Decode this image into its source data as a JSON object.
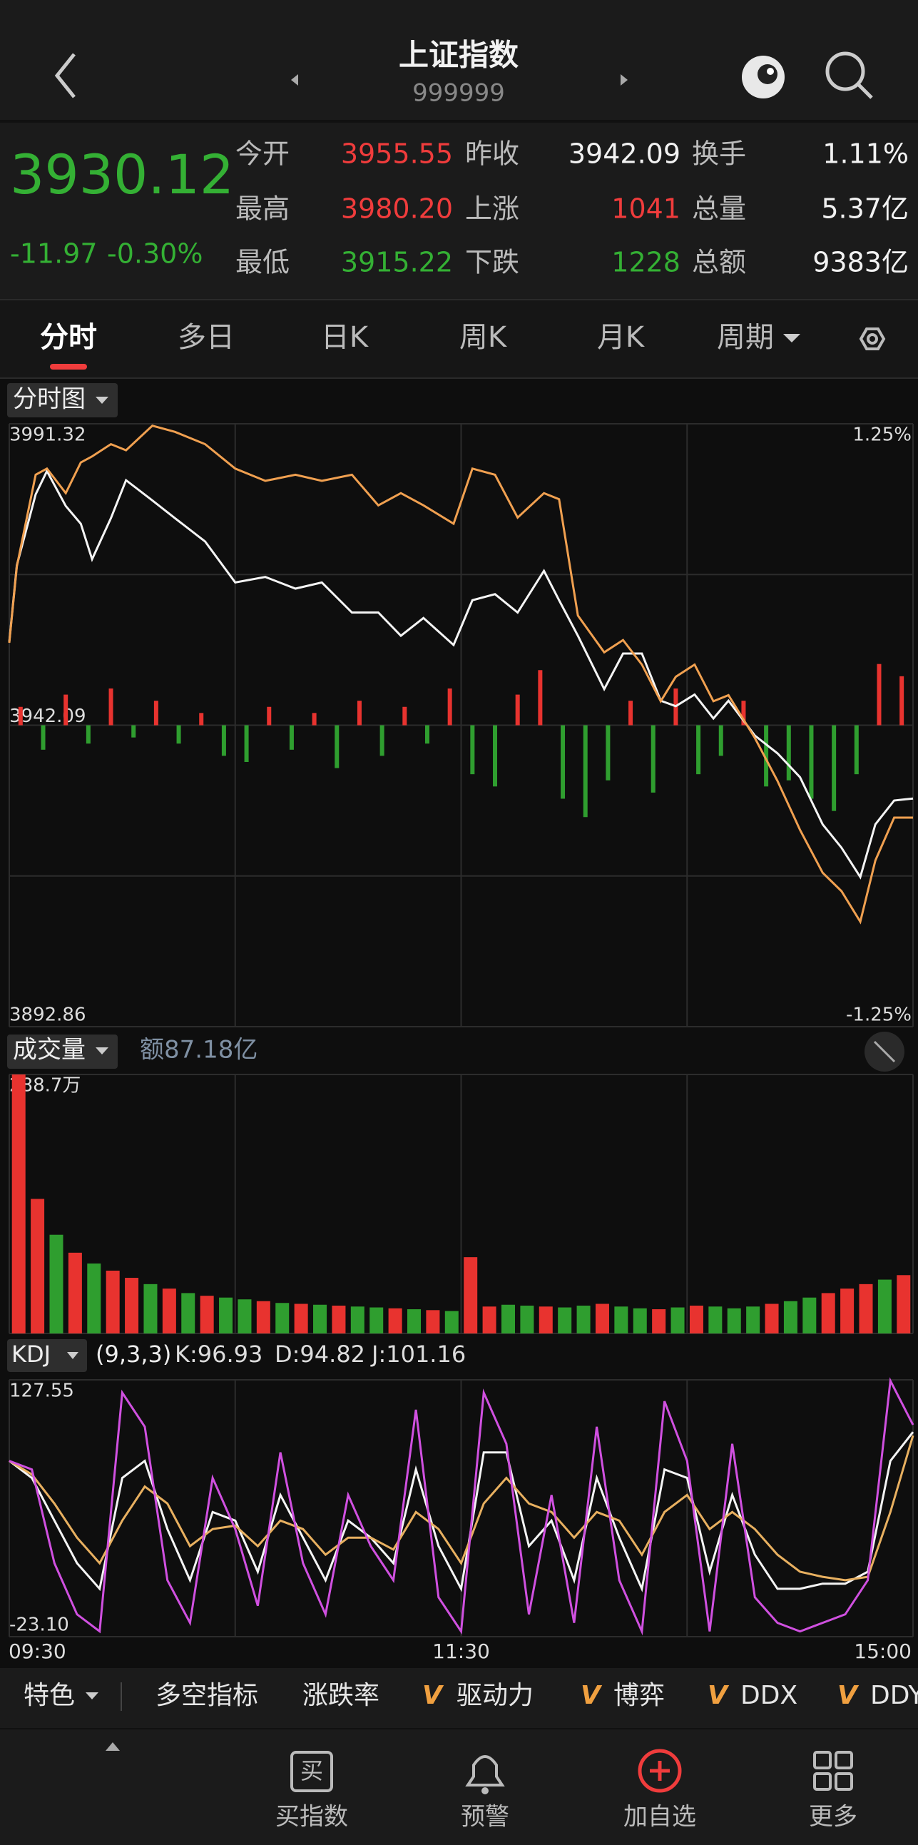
{
  "header": {
    "title": "上证指数",
    "code": "999999"
  },
  "quote": {
    "price": "3930.12",
    "change": "-11.97",
    "change_pct": "-0.30%",
    "rows": [
      [
        {
          "label": "今开",
          "value": "3955.55"
        },
        {
          "label": "昨收",
          "value": "3942.09"
        },
        {
          "label": "换手",
          "value": "1.11%"
        }
      ],
      [
        {
          "label": "最高",
          "value": "3980.20"
        },
        {
          "label": "上涨",
          "value": "1041"
        },
        {
          "label": "总量",
          "value": "5.37亿"
        }
      ],
      [
        {
          "label": "最低",
          "value": "3915.22"
        },
        {
          "label": "下跌",
          "value": "1228"
        },
        {
          "label": "总额",
          "value": "9383亿"
        }
      ]
    ]
  },
  "tabs": [
    "分时",
    "多日",
    "日K",
    "周K",
    "月K",
    "周期"
  ],
  "chart_data": [
    {
      "type": "line",
      "label": "分时图",
      "x": [
        0,
        2,
        7,
        10,
        15,
        19,
        22,
        27,
        31,
        38,
        44,
        52,
        60,
        68,
        76,
        83,
        91,
        98,
        104,
        110,
        118,
        123,
        129,
        135,
        142,
        146,
        151,
        158,
        163,
        168,
        173,
        177,
        182,
        187,
        191,
        198,
        204,
        210,
        216,
        221,
        226,
        230,
        235,
        240
      ],
      "xlim": [
        0,
        240
      ],
      "ylim": [
        3892.86,
        3991.32
      ],
      "yticks": [
        3892.86,
        3942.09,
        3991.32
      ],
      "y2lim": [
        -1.25,
        1.25
      ],
      "y2ticks": [
        {
          "value": -1.25,
          "label": "-1.25%"
        },
        {
          "value": 1.25,
          "label": "1.25%"
        }
      ],
      "series": [
        {
          "color": "#f4f4f4",
          "values": [
            3955.7,
            3968.2,
            3979.8,
            3983.6,
            3977.9,
            3975,
            3969.2,
            3975.9,
            3982.1,
            3978.8,
            3975.9,
            3972.1,
            3965.4,
            3966.3,
            3964.4,
            3965.4,
            3960.5,
            3960.5,
            3956.7,
            3959.6,
            3955.2,
            3962.5,
            3963.5,
            3960.5,
            3967.3,
            3962.5,
            3956.7,
            3948,
            3953.8,
            3953.8,
            3946.1,
            3945.2,
            3947.1,
            3943.2,
            3946.1,
            3940.4,
            3937.5,
            3933.6,
            3925.9,
            3922.1,
            3917.3,
            3925.9,
            3929.8,
            3930.12
          ]
        },
        {
          "color": "#f0a050",
          "values": [
            3955.55,
            3968,
            3983,
            3984,
            3980,
            3985,
            3986,
            3988,
            3987,
            3991,
            3990,
            3988,
            3984,
            3982,
            3983,
            3982,
            3983,
            3978,
            3980,
            3978,
            3975,
            3984,
            3983,
            3976,
            3980,
            3979,
            3960,
            3954,
            3956,
            3952,
            3946,
            3950,
            3952,
            3946,
            3947,
            3940,
            3933,
            3925,
            3918,
            3915,
            3910,
            3920,
            3927,
            3927
          ]
        }
      ],
      "bars": {
        "baseline": 3942.09,
        "up_color": "#e8332f",
        "down_color": "#2f9e2f",
        "x": [
          3,
          9,
          15,
          21,
          27,
          33,
          39,
          45,
          51,
          57,
          63,
          69,
          75,
          81,
          87,
          93,
          99,
          105,
          111,
          117,
          123,
          129,
          135,
          141,
          147,
          153,
          159,
          165,
          171,
          177,
          183,
          189,
          195,
          201,
          207,
          213,
          219,
          225,
          231,
          237
        ],
        "values": [
          3,
          -4,
          5,
          -3,
          6,
          -2,
          4,
          -3,
          2,
          -5,
          -6,
          3,
          -4,
          2,
          -7,
          4,
          -5,
          3,
          -3,
          6,
          -8,
          -10,
          5,
          9,
          -12,
          -15,
          -9,
          4,
          -11,
          6,
          -8,
          -5,
          4,
          -10,
          -9,
          -12,
          -14,
          -8,
          10,
          8
        ]
      }
    },
    {
      "type": "bar",
      "label": "成交量",
      "amount": "额87.18亿",
      "x": [
        2.5,
        7.5,
        12.5,
        17.5,
        22.5,
        27.5,
        32.5,
        37.5,
        42.5,
        47.5,
        52.5,
        57.5,
        62.5,
        67.5,
        72.5,
        77.5,
        82.5,
        87.5,
        92.5,
        97.5,
        102.5,
        107.5,
        112.5,
        117.5,
        122.5,
        127.5,
        132.5,
        137.5,
        142.5,
        147.5,
        152.5,
        157.5,
        162.5,
        167.5,
        172.5,
        177.5,
        182.5,
        187.5,
        192.5,
        197.5,
        202.5,
        207.5,
        212.5,
        217.5,
        222.5,
        227.5,
        232.5,
        237.5
      ],
      "values": [
        288.7,
        150,
        110,
        90,
        78,
        70,
        62,
        55,
        50,
        45,
        42,
        40,
        38,
        36,
        34,
        33,
        32,
        31,
        30,
        29,
        28,
        27,
        26,
        25,
        85,
        30,
        32,
        31,
        30,
        29,
        31,
        33,
        30,
        28,
        27,
        29,
        31,
        30,
        28,
        30,
        33,
        36,
        40,
        45,
        50,
        55,
        60,
        65
      ],
      "colors": [
        "#e8332f",
        "#e8332f",
        "#2f9e2f",
        "#e8332f",
        "#2f9e2f",
        "#e8332f",
        "#e8332f",
        "#2f9e2f",
        "#e8332f",
        "#2f9e2f",
        "#e8332f",
        "#2f9e2f",
        "#2f9e2f",
        "#e8332f",
        "#2f9e2f",
        "#e8332f",
        "#2f9e2f",
        "#e8332f",
        "#2f9e2f",
        "#2f9e2f",
        "#e8332f",
        "#2f9e2f",
        "#e8332f",
        "#2f9e2f",
        "#e8332f",
        "#e8332f",
        "#2f9e2f",
        "#2f9e2f",
        "#e8332f",
        "#2f9e2f",
        "#2f9e2f",
        "#e8332f",
        "#2f9e2f",
        "#2f9e2f",
        "#e8332f",
        "#2f9e2f",
        "#e8332f",
        "#2f9e2f",
        "#2f9e2f",
        "#2f9e2f",
        "#e8332f",
        "#2f9e2f",
        "#2f9e2f",
        "#e8332f",
        "#e8332f",
        "#e8332f",
        "#2f9e2f",
        "#e8332f"
      ],
      "xlim": [
        0,
        240
      ],
      "ylim": [
        0,
        288.7
      ],
      "yticks": [
        {
          "value": 288.7,
          "label": "288.7万"
        }
      ]
    },
    {
      "type": "line",
      "label": "KDJ",
      "params": "(9,3,3)",
      "legend": [
        "K:96.93",
        "D:94.82",
        "J:101.16"
      ],
      "x": [
        0,
        6,
        12,
        18,
        24,
        30,
        36,
        42,
        48,
        54,
        60,
        66,
        72,
        78,
        84,
        90,
        96,
        102,
        108,
        114,
        120,
        126,
        132,
        138,
        144,
        150,
        156,
        162,
        168,
        174,
        180,
        186,
        192,
        198,
        204,
        210,
        216,
        222,
        228,
        234,
        240
      ],
      "xlim": [
        0,
        240
      ],
      "xticks": [
        {
          "value": 0,
          "label": "09:30"
        },
        {
          "value": 120,
          "label": "11:30"
        },
        {
          "value": 240,
          "label": "15:00"
        }
      ],
      "ylim": [
        -23.1,
        127.55
      ],
      "yticks": [
        {
          "value": -23.1,
          "label": "-23.10"
        },
        127.55
      ],
      "series": [
        {
          "color": "#f4f4f4",
          "values": [
            80,
            70,
            45,
            20,
            5,
            70,
            80,
            40,
            10,
            50,
            45,
            15,
            60,
            35,
            10,
            45,
            35,
            20,
            75,
            30,
            5,
            85,
            85,
            30,
            45,
            10,
            70,
            35,
            5,
            75,
            70,
            15,
            60,
            25,
            5,
            5,
            8,
            8,
            15,
            80,
            96.93
          ]
        },
        {
          "color": "#e8b060",
          "values": [
            80,
            72,
            55,
            35,
            20,
            45,
            65,
            55,
            30,
            40,
            42,
            30,
            45,
            40,
            25,
            35,
            35,
            28,
            50,
            40,
            20,
            55,
            70,
            55,
            50,
            35,
            50,
            45,
            25,
            50,
            60,
            40,
            50,
            40,
            25,
            15,
            12,
            10,
            12,
            50,
            94.82
          ]
        },
        {
          "color": "#d050e0",
          "values": [
            80,
            75,
            20,
            -10,
            -20,
            120,
            100,
            10,
            -15,
            70,
            40,
            -5,
            85,
            20,
            -10,
            60,
            30,
            10,
            110,
            0,
            -20,
            120,
            90,
            -10,
            60,
            -15,
            100,
            10,
            -20,
            115,
            80,
            -20,
            90,
            0,
            -15,
            -20,
            -15,
            -10,
            10,
            127,
            101.16
          ]
        }
      ]
    }
  ],
  "indicators": {
    "items": [
      "特色",
      "多空指标",
      "涨跌率",
      "驱动力",
      "博弈",
      "DDX",
      "DDY"
    ],
    "badge": "V"
  },
  "nav": {
    "buy_icon": "买",
    "items": [
      "买指数",
      "预警",
      "加自选",
      "更多"
    ]
  }
}
